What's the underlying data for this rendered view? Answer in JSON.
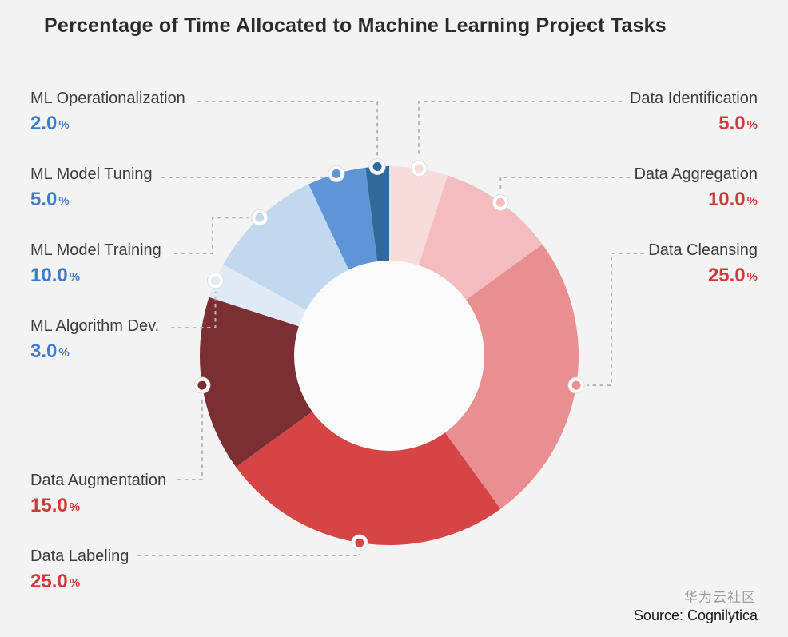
{
  "chart_data": {
    "type": "pie",
    "donut": true,
    "title": "Percentage of Time Allocated to Machine Learning Project Tasks",
    "source": "Source: Cognilytica",
    "watermark": "华为云社区",
    "percent_sign": "%",
    "legend_position": "callout-labels",
    "segments": [
      {
        "label": "Data Identification",
        "value": 5.0,
        "display": "5.0",
        "color": "#f8dbdb",
        "accent": "#ce3a3a",
        "side": "right"
      },
      {
        "label": "Data Aggregation",
        "value": 10.0,
        "display": "10.0",
        "color": "#f3bcbe",
        "accent": "#ce3a3a",
        "side": "right"
      },
      {
        "label": "Data Cleansing",
        "value": 25.0,
        "display": "25.0",
        "color": "#ea8f91",
        "accent": "#ce3a3a",
        "side": "right"
      },
      {
        "label": "Data Labeling",
        "value": 25.0,
        "display": "25.0",
        "color": "#d64545",
        "accent": "#ce3a3a",
        "side": "left"
      },
      {
        "label": "Data Augmentation",
        "value": 15.0,
        "display": "15.0",
        "color": "#7c2f33",
        "accent": "#ce3a3a",
        "side": "left"
      },
      {
        "label": "ML Algorithm Dev.",
        "value": 3.0,
        "display": "3.0",
        "color": "#e0eaf6",
        "accent": "#3e7cc9",
        "side": "left"
      },
      {
        "label": "ML Model Training",
        "value": 10.0,
        "display": "10.0",
        "color": "#c2d8ef",
        "accent": "#3e7cc9",
        "side": "left"
      },
      {
        "label": "ML Model Tuning",
        "value": 5.0,
        "display": "5.0",
        "color": "#5e95d6",
        "accent": "#3e7cc9",
        "side": "left"
      },
      {
        "label": "ML Operationalization",
        "value": 2.0,
        "display": "2.0",
        "color": "#2f6a9a",
        "accent": "#3e7cc9",
        "side": "left"
      }
    ]
  }
}
